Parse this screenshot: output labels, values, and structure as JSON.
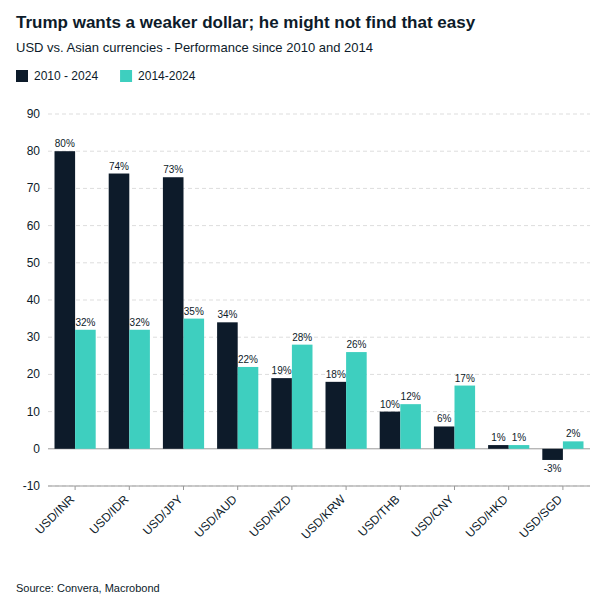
{
  "chart_data": {
    "type": "bar",
    "title": "Trump wants a weaker dollar; he might not find that easy",
    "subtitle": "USD vs. Asian currencies - Performance since 2010 and 2014",
    "annotations": [
      "Source: Convera, Macrobond"
    ],
    "categories": [
      "USD/INR",
      "USD/IDR",
      "USD/JPY",
      "USD/AUD",
      "USD/NZD",
      "USD/KRW",
      "USD/THB",
      "USD/CNY",
      "USD/HKD",
      "USD/SGD"
    ],
    "series": [
      {
        "name": "2010 - 2024",
        "color": "#0d1b2a",
        "values": [
          80,
          74,
          73,
          34,
          19,
          18,
          10,
          6,
          1,
          -3
        ],
        "value_labels": [
          "80%",
          "74%",
          "73%",
          "34%",
          "19%",
          "18%",
          "10%",
          "6%",
          "1%",
          "-3%"
        ]
      },
      {
        "name": "2014-2024",
        "color": "#3ecfbf",
        "values": [
          32,
          32,
          35,
          22,
          28,
          26,
          12,
          17,
          1,
          2
        ],
        "value_labels": [
          "32%",
          "32%",
          "35%",
          "22%",
          "28%",
          "26%",
          "12%",
          "17%",
          "1%",
          "2%"
        ]
      }
    ],
    "ylim": [
      -10,
      90
    ],
    "yticks": [
      -10,
      0,
      10,
      20,
      30,
      40,
      50,
      60,
      70,
      80,
      90
    ],
    "grid": true,
    "legend": "top-left",
    "data_labels": true
  }
}
